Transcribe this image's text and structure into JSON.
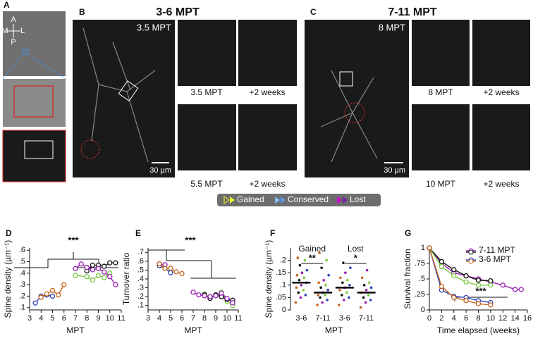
{
  "figure": {
    "panel_labels": [
      "A",
      "B",
      "C",
      "D",
      "E",
      "F",
      "G"
    ],
    "panel_a": {
      "compass": [
        "A",
        "M",
        "L",
        "P"
      ]
    },
    "panel_b": {
      "title": "3-6 MPT",
      "image_label": "3.5 MPT",
      "scale": "30 µm",
      "captions": [
        "3.5 MPT",
        "+2 weeks",
        "5.5 MPT",
        "+2 weeks"
      ]
    },
    "panel_c": {
      "title": "7-11 MPT",
      "image_label": "8 MPT",
      "scale": "30 µm",
      "captions": [
        "8 MPT",
        "+2 weeks",
        "10 MPT",
        "+2 weeks"
      ]
    },
    "legend": [
      "Gained",
      "Conserved",
      "Lost"
    ]
  },
  "chart_data": [
    {
      "type": "line",
      "ylabel": "Spine density (µm⁻¹)",
      "xlabel": "MPT",
      "annotation": "***",
      "xlim": [
        3,
        11
      ],
      "xticks": [
        3,
        4,
        5,
        6,
        7,
        8,
        9,
        10,
        11
      ],
      "ylim": [
        0.08,
        0.62
      ],
      "yticks": [
        {
          "value": 0.1,
          "label": ".1"
        },
        {
          "value": 0.2,
          "label": ".2"
        },
        {
          "value": 0.3,
          "label": ".3"
        },
        {
          "value": 0.4,
          "label": ".4"
        },
        {
          "value": 0.5,
          "label": ".5"
        },
        {
          "value": 0.6,
          "label": ".6"
        }
      ],
      "series": [
        {
          "color": "#2b3fb8",
          "x": [
            3.5,
            4,
            4.5,
            5
          ],
          "values": [
            0.14,
            0.2,
            0.21,
            0.2
          ]
        },
        {
          "color": "#c8641e",
          "x": [
            4,
            4.5,
            5,
            5.5,
            6
          ],
          "values": [
            0.19,
            0.22,
            0.25,
            0.21,
            0.3
          ]
        },
        {
          "color": "#7ac943",
          "x": [
            7,
            8,
            8.5,
            9,
            9.5,
            10
          ],
          "values": [
            0.38,
            0.37,
            0.34,
            0.38,
            0.36,
            0.4
          ]
        },
        {
          "color": "#111111",
          "x": [
            8,
            8.5,
            9,
            9.5,
            10,
            10.5
          ],
          "values": [
            0.42,
            0.47,
            0.47,
            0.46,
            0.49,
            0.49
          ]
        },
        {
          "color": "#9b1fb5",
          "x": [
            7,
            7.5,
            8,
            8.5,
            9,
            9.5,
            10,
            10.5
          ],
          "values": [
            0.44,
            0.48,
            0.45,
            0.43,
            0.44,
            0.41,
            0.37,
            0.3
          ]
        }
      ]
    },
    {
      "type": "line",
      "ylabel": "Turnover ratio",
      "xlabel": "MPT",
      "annotation": "***",
      "xlim": [
        3,
        11
      ],
      "xticks": [
        3,
        4,
        5,
        6,
        7,
        8,
        9,
        10,
        11
      ],
      "ylim": [
        0.05,
        0.75
      ],
      "yticks": [
        {
          "value": 0.1,
          "label": ".1"
        },
        {
          "value": 0.2,
          "label": ".2"
        },
        {
          "value": 0.3,
          "label": ".3"
        },
        {
          "value": 0.4,
          "label": ".4"
        },
        {
          "value": 0.5,
          "label": ".5"
        },
        {
          "value": 0.6,
          "label": ".6"
        },
        {
          "value": 0.7,
          "label": ".7"
        }
      ],
      "series": [
        {
          "color": "#9b1fb5",
          "x": [
            4,
            4.5
          ],
          "values": [
            0.57,
            0.56
          ]
        },
        {
          "color": "#2b3fb8",
          "x": [
            4,
            4.5,
            5
          ],
          "values": [
            0.55,
            0.52,
            0.47
          ]
        },
        {
          "color": "#c8641e",
          "x": [
            4,
            4.5,
            5,
            5.5,
            6
          ],
          "values": [
            0.57,
            0.52,
            0.52,
            0.48,
            0.46
          ]
        },
        {
          "color": "#7ac943",
          "x": [
            8,
            8.5,
            9,
            9.5,
            10,
            10.5
          ],
          "values": [
            0.23,
            0.2,
            0.22,
            0.25,
            0.15,
            0.1
          ]
        },
        {
          "color": "#111111",
          "x": [
            8,
            8.5,
            9,
            9.5,
            10,
            10.5
          ],
          "values": [
            0.22,
            0.18,
            0.22,
            0.2,
            0.17,
            0.16
          ]
        },
        {
          "color": "#9b1fb5",
          "x": [
            7,
            7.5,
            8,
            8.5,
            9,
            9.5,
            10,
            10.5
          ],
          "values": [
            0.25,
            0.22,
            0.21,
            0.2,
            0.21,
            0.24,
            0.18,
            0.13
          ]
        }
      ]
    },
    {
      "type": "strip",
      "ylabel": "Spine density (µm⁻¹)",
      "xlabel": "MPT",
      "groups": [
        "Gained",
        "Lost"
      ],
      "annotations": [
        "**",
        "*"
      ],
      "categories": [
        "3-6",
        "7-11",
        "3-6",
        "7-11"
      ],
      "ylim": [
        0,
        0.25
      ],
      "yticks": [
        0,
        {
          "value": 0.05,
          "label": ".05"
        },
        {
          "value": 0.1,
          "label": ".1"
        },
        {
          "value": 0.15,
          "label": ".15"
        },
        {
          "value": 0.2,
          "label": ".2"
        }
      ],
      "point_colors": [
        "#c8641e",
        "#9b1fb5",
        "#2b3fb8",
        "#111111",
        "#7ac943"
      ],
      "means": [
        0.11,
        0.07,
        0.09,
        0.07
      ],
      "points": [
        [
          0.03,
          0.05,
          0.06,
          0.07,
          0.08,
          0.09,
          0.1,
          0.11,
          0.12,
          0.13,
          0.14,
          0.15,
          0.16,
          0.18,
          0.2,
          0.21
        ],
        [
          0.02,
          0.03,
          0.04,
          0.05,
          0.06,
          0.06,
          0.07,
          0.08,
          0.09,
          0.1,
          0.11,
          0.12,
          0.14,
          0.17,
          0.2,
          0.23
        ],
        [
          0.02,
          0.04,
          0.05,
          0.06,
          0.07,
          0.08,
          0.09,
          0.1,
          0.11,
          0.12,
          0.13,
          0.15,
          0.17,
          0.19
        ],
        [
          0.01,
          0.03,
          0.04,
          0.05,
          0.06,
          0.07,
          0.08,
          0.09,
          0.1,
          0.11,
          0.13,
          0.16
        ]
      ]
    },
    {
      "type": "line",
      "ylabel": "Survival fraction",
      "xlabel": "Time elapsed (weeks)",
      "annotation": "***",
      "legend": [
        "7-11 MPT",
        "3-6 MPT"
      ],
      "xlim": [
        0,
        16
      ],
      "xticks": [
        0,
        2,
        4,
        6,
        8,
        10,
        12,
        14,
        16
      ],
      "ylim": [
        0,
        1
      ],
      "yticks": [
        0,
        {
          "value": 0.25,
          "label": ".25"
        },
        {
          "value": 0.5,
          "label": ".5"
        },
        {
          "value": 0.75,
          "label": ".75"
        },
        1
      ],
      "series": [
        {
          "color": "#9b1fb5",
          "x": [
            0,
            2,
            4,
            6,
            8,
            10,
            12,
            14,
            15
          ],
          "values": [
            1,
            0.75,
            0.6,
            0.55,
            0.5,
            0.45,
            0.4,
            0.33,
            0.33
          ]
        },
        {
          "color": "#111111",
          "x": [
            0,
            2,
            4,
            6,
            8,
            10
          ],
          "values": [
            1,
            0.78,
            0.65,
            0.55,
            0.48,
            0.47
          ]
        },
        {
          "color": "#7ac943",
          "x": [
            0,
            2,
            4,
            6,
            8,
            10
          ],
          "values": [
            1,
            0.7,
            0.55,
            0.45,
            0.4,
            0.4
          ]
        },
        {
          "color": "#2b3fb8",
          "x": [
            0,
            2,
            4,
            6,
            8,
            10
          ],
          "values": [
            1,
            0.32,
            0.22,
            0.2,
            0.15,
            0.12
          ]
        },
        {
          "color": "#c8641e",
          "x": [
            0,
            2,
            4,
            6,
            8,
            10
          ],
          "values": [
            1,
            0.38,
            0.2,
            0.15,
            0.1,
            0.08
          ]
        }
      ]
    }
  ]
}
